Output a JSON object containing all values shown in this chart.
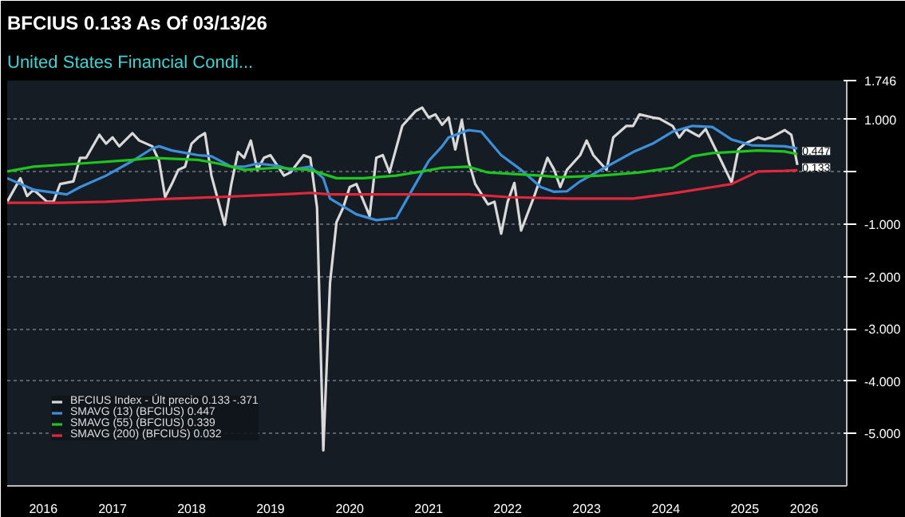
{
  "chart_data": {
    "type": "line",
    "title": "BFCIUS 0.133 As Of 03/13/26",
    "subtitle": "United States Financial Condi...",
    "series": [
      {
        "name": "BFCIUS Index - Últ precio 0.133 -.371",
        "color": "#d9d9d9",
        "x": [
          "2016-03",
          "2016-05",
          "2016-06",
          "2016-07",
          "2016-09",
          "2016-10",
          "2016-11",
          "2017-01",
          "2017-02",
          "2017-03",
          "2017-05",
          "2017-06",
          "2017-07",
          "2017-08",
          "2017-10",
          "2017-11",
          "2018-01",
          "2018-02",
          "2018-03",
          "2018-04",
          "2018-05",
          "2018-06",
          "2018-07",
          "2018-08",
          "2018-09",
          "2018-10",
          "2018-12",
          "2019-01",
          "2019-02",
          "2019-03",
          "2019-04",
          "2019-05",
          "2019-06",
          "2019-07",
          "2019-09",
          "2019-10",
          "2019-12",
          "2020-01",
          "2020-02",
          "2020-03",
          "2020-04",
          "2020-05",
          "2020-06",
          "2020-07",
          "2020-08",
          "2020-10",
          "2020-11",
          "2020-12",
          "2021-01",
          "2021-03",
          "2021-05",
          "2021-06",
          "2021-07",
          "2021-08",
          "2021-09",
          "2021-10",
          "2021-11",
          "2021-12",
          "2022-01",
          "2022-02",
          "2022-04",
          "2022-05",
          "2022-06",
          "2022-07",
          "2022-08",
          "2022-09",
          "2022-11",
          "2023-01",
          "2023-02",
          "2023-03",
          "2023-04",
          "2023-06",
          "2023-07",
          "2023-08",
          "2023-10",
          "2023-11",
          "2024-01",
          "2024-02",
          "2024-03",
          "2024-05",
          "2024-06",
          "2024-08",
          "2024-09",
          "2024-10",
          "2024-12",
          "2025-01",
          "2025-03",
          "2025-05",
          "2025-06",
          "2025-07",
          "2025-09",
          "2025-10",
          "2025-11",
          "2026-01",
          "2026-02",
          "2026-03"
        ],
        "values": [
          -0.57,
          -0.12,
          -0.46,
          -0.34,
          -0.57,
          -0.57,
          -0.23,
          -0.18,
          0.27,
          0.27,
          0.71,
          0.54,
          0.66,
          0.49,
          0.74,
          0.6,
          0.49,
          0.21,
          -0.48,
          -0.23,
          0.04,
          0.1,
          0.54,
          0.66,
          0.74,
          -0.07,
          -1.01,
          -0.23,
          0.38,
          0.27,
          0.6,
          0.04,
          0.27,
          0.32,
          -0.07,
          -0.01,
          0.32,
          0.27,
          -0.68,
          -5.32,
          -2.12,
          -0.96,
          -0.68,
          -0.29,
          -0.23,
          -0.84,
          0.27,
          0.32,
          -0.01,
          0.88,
          1.16,
          1.23,
          1.04,
          1.1,
          0.9,
          1.04,
          0.43,
          0.99,
          0.21,
          -0.23,
          -0.62,
          -0.57,
          -1.18,
          -0.57,
          -0.21,
          -1.12,
          -0.46,
          0.27,
          0.04,
          -0.29,
          0.04,
          0.32,
          0.6,
          0.32,
          0.04,
          0.66,
          0.88,
          0.88,
          1.1,
          1.04,
          1.02,
          0.88,
          0.66,
          0.82,
          0.68,
          0.82,
          0.32,
          -0.2,
          0.43,
          0.54,
          0.66,
          0.62,
          0.66,
          0.8,
          0.71,
          0.133
        ]
      },
      {
        "name": "SMAVG (13) (BFCIUS) 0.447",
        "color": "#3d8fd9",
        "x": [
          "2016-03",
          "2016-07",
          "2016-12",
          "2017-02",
          "2017-06",
          "2017-10",
          "2018-01",
          "2018-02",
          "2018-04",
          "2018-08",
          "2018-10",
          "2019-01",
          "2019-03",
          "2019-05",
          "2019-08",
          "2019-10",
          "2020-01",
          "2020-03",
          "2020-04",
          "2020-08",
          "2020-11",
          "2021-02",
          "2021-05",
          "2021-07",
          "2021-09",
          "2021-10",
          "2022-01",
          "2022-03",
          "2022-06",
          "2022-09",
          "2022-12",
          "2023-02",
          "2023-04",
          "2023-06",
          "2023-10",
          "2024-02",
          "2024-05",
          "2024-08",
          "2024-11",
          "2025-02",
          "2025-05",
          "2025-08",
          "2026-01",
          "2026-03"
        ],
        "values": [
          -0.12,
          -0.34,
          -0.43,
          -0.29,
          -0.07,
          0.21,
          0.45,
          0.49,
          0.41,
          0.32,
          0.3,
          0.1,
          0.1,
          0.16,
          0.12,
          0.04,
          0.1,
          -0.12,
          -0.51,
          -0.81,
          -0.92,
          -0.88,
          -0.23,
          0.21,
          0.49,
          0.66,
          0.8,
          0.77,
          0.32,
          0.04,
          -0.29,
          -0.38,
          -0.37,
          -0.18,
          0.1,
          0.38,
          0.54,
          0.77,
          0.88,
          0.86,
          0.62,
          0.51,
          0.49,
          0.447
        ]
      },
      {
        "name": "SMAVG (55) (BFCIUS) 0.339",
        "color": "#1fc51f",
        "x": [
          "2016-03",
          "2016-07",
          "2017-02",
          "2017-10",
          "2018-01",
          "2018-08",
          "2018-11",
          "2019-03",
          "2019-08",
          "2020-01",
          "2020-05",
          "2020-09",
          "2021-02",
          "2021-06",
          "2021-09",
          "2022-01",
          "2022-04",
          "2022-12",
          "2023-03",
          "2023-09",
          "2024-03",
          "2024-08",
          "2024-11",
          "2025-02",
          "2025-09",
          "2026-01",
          "2026-03"
        ],
        "values": [
          0.01,
          0.1,
          0.16,
          0.23,
          0.27,
          0.23,
          0.16,
          0.04,
          0.08,
          0.04,
          -0.12,
          -0.12,
          -0.07,
          0.01,
          0.08,
          0.1,
          -0.01,
          -0.07,
          -0.1,
          -0.07,
          -0.01,
          0.08,
          0.3,
          0.36,
          0.41,
          0.39,
          0.339
        ]
      },
      {
        "name": "SMAVG (200) (BFCIUS) 0.032",
        "color": "#e0283c",
        "x": [
          "2016-03",
          "2016-11",
          "2017-06",
          "2018-02",
          "2018-11",
          "2019-10",
          "2020-01",
          "2020-04",
          "2021-09",
          "2022-01",
          "2022-07",
          "2023-04",
          "2024-02",
          "2024-08",
          "2025-02",
          "2025-05",
          "2025-09",
          "2026-01",
          "2026-03"
        ],
        "values": [
          -0.59,
          -0.59,
          -0.57,
          -0.52,
          -0.48,
          -0.42,
          -0.4,
          -0.43,
          -0.43,
          -0.43,
          -0.48,
          -0.51,
          -0.51,
          -0.41,
          -0.29,
          -0.23,
          0.01,
          0.02,
          0.032
        ]
      }
    ],
    "xlim": [
      "2016-03-01",
      "2026-10-15"
    ],
    "xticks": [
      {
        "value": "2016-08-15",
        "label": "2016"
      },
      {
        "value": "2017-07-01",
        "label": "2017"
      },
      {
        "value": "2018-07-01",
        "label": "2018"
      },
      {
        "value": "2019-07-01",
        "label": "2019"
      },
      {
        "value": "2020-07-01",
        "label": "2020"
      },
      {
        "value": "2021-07-01",
        "label": "2021"
      },
      {
        "value": "2022-07-01",
        "label": "2022"
      },
      {
        "value": "2023-07-01",
        "label": "2023"
      },
      {
        "value": "2024-07-01",
        "label": "2024"
      },
      {
        "value": "2025-07-01",
        "label": "2025"
      },
      {
        "value": "2026-04-01",
        "label": "2026"
      }
    ],
    "ylim": [
      -6,
      1.746
    ],
    "yticks": [
      {
        "value": 1.746,
        "label": "1.746"
      },
      {
        "value": 1,
        "label": "1.000"
      },
      {
        "value": 0,
        "label": null
      },
      {
        "value": -1,
        "label": "-1.000"
      },
      {
        "value": -2,
        "label": "-2.000"
      },
      {
        "value": -3,
        "label": "-3.000"
      },
      {
        "value": -4,
        "label": "-4.000"
      },
      {
        "value": -5,
        "label": "-5.000"
      }
    ],
    "annotations": [
      {
        "text": "0.447",
        "x": "2026-03",
        "y": 0.447
      },
      {
        "text": "0.133",
        "x": "2026-03",
        "y": 0.133
      }
    ],
    "grid": "y",
    "legend": "bottom left",
    "line_style": "solid",
    "marker": "none"
  }
}
